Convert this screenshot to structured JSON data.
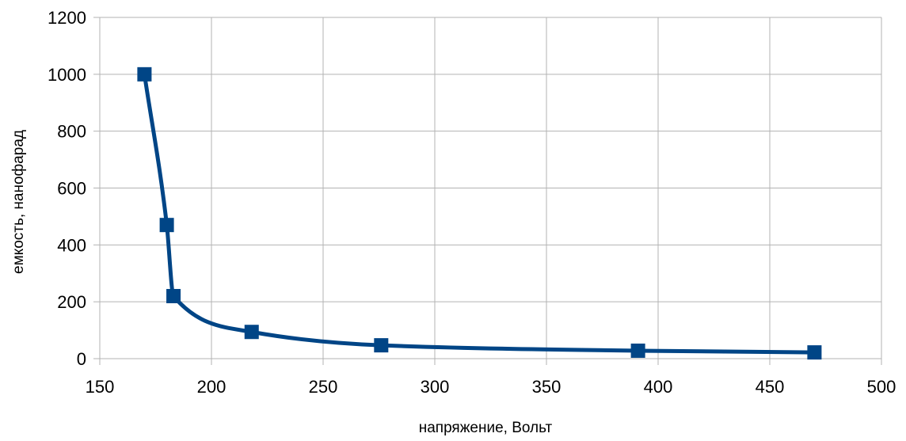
{
  "chart_data": {
    "type": "scatter",
    "title": "",
    "xlabel": "напряжение, Вольт",
    "ylabel": "емкость, нанофарад",
    "xlim": [
      150,
      500
    ],
    "ylim": [
      0,
      1200
    ],
    "x_ticks": [
      150,
      200,
      250,
      300,
      350,
      400,
      450,
      500
    ],
    "y_ticks": [
      0,
      200,
      400,
      600,
      800,
      1000,
      1200
    ],
    "x_tick_labels": [
      "150",
      "200",
      "250",
      "300",
      "350",
      "400",
      "450",
      "500"
    ],
    "y_tick_labels": [
      "0",
      "200",
      "400",
      "600",
      "800",
      "1000",
      "1200"
    ],
    "grid": true,
    "legend": false,
    "smooth_line": true,
    "series": [
      {
        "color": "#004586",
        "marker": "square",
        "x": [
          170,
          180,
          183,
          218,
          276,
          391,
          470
        ],
        "y": [
          1000,
          470,
          220,
          94,
          47,
          28,
          22
        ]
      }
    ]
  }
}
